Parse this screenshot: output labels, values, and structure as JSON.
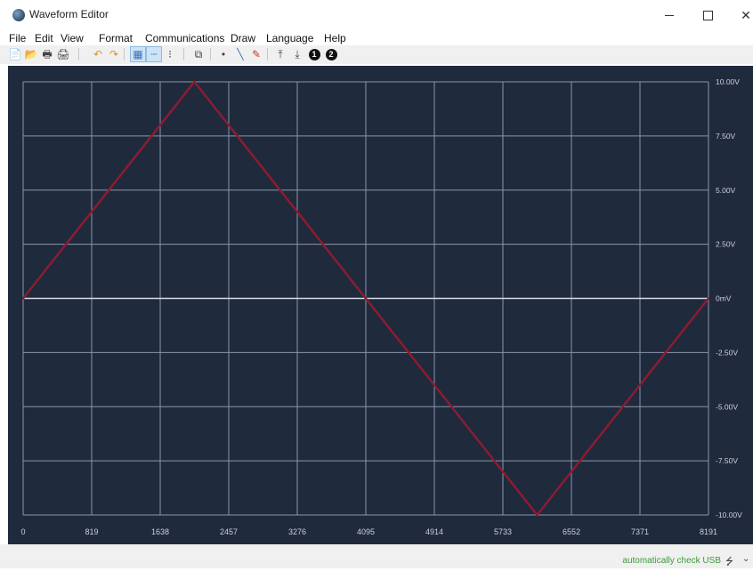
{
  "window": {
    "title": "Waveform Editor",
    "minimize_glyph": "–",
    "maximize_glyph": "□",
    "close_glyph": "✕"
  },
  "menu": [
    {
      "label": "File",
      "name": "menu-file"
    },
    {
      "label": "Edit",
      "name": "menu-edit"
    },
    {
      "label": "View",
      "name": "menu-view"
    },
    {
      "label": "Format",
      "name": "menu-format"
    },
    {
      "label": "Communications",
      "name": "menu-communications"
    },
    {
      "label": "Draw",
      "name": "menu-draw"
    },
    {
      "label": "Language",
      "name": "menu-language"
    },
    {
      "label": "Help",
      "name": "menu-help"
    }
  ],
  "toolbar": {
    "buttons": [
      {
        "name": "new-file-icon",
        "glyph": "📄"
      },
      {
        "name": "open-folder-icon",
        "glyph": "📂"
      },
      {
        "name": "print-icon",
        "glyph": "🖶"
      },
      {
        "name": "print-preview-icon",
        "glyph": "🖨"
      },
      {
        "name": "undo-icon",
        "glyph": "↶"
      },
      {
        "name": "redo-icon",
        "glyph": "↷"
      },
      {
        "name": "grid-snap-icon",
        "glyph": "▦"
      },
      {
        "name": "line-style-icon",
        "glyph": "┄"
      },
      {
        "name": "point-mode-icon",
        "glyph": "⁝"
      },
      {
        "name": "properties-icon",
        "glyph": "⧉"
      },
      {
        "name": "draw-point-icon",
        "glyph": "•"
      },
      {
        "name": "draw-line-icon",
        "glyph": "╲"
      },
      {
        "name": "pencil-icon",
        "glyph": "✎"
      },
      {
        "name": "upload-icon",
        "glyph": "⤒"
      },
      {
        "name": "download-icon",
        "glyph": "⤓"
      },
      {
        "name": "channel-1-button",
        "glyph": "1"
      },
      {
        "name": "channel-2-button",
        "glyph": "2"
      }
    ]
  },
  "chart_data": {
    "type": "line",
    "title": "",
    "xlabel": "",
    "ylabel": "",
    "x_ticks": [
      "0",
      "819",
      "1638",
      "2457",
      "3276",
      "4095",
      "4914",
      "5733",
      "6552",
      "7371",
      "8191"
    ],
    "y_ticks": [
      "10.00V",
      "7.50V",
      "5.00V",
      "2.50V",
      "0mV",
      "-2.50V",
      "-5.00V",
      "-7.50V",
      "-10.00V"
    ],
    "xlim": [
      0,
      8191
    ],
    "ylim": [
      -10,
      10
    ],
    "grid": true,
    "series": [
      {
        "color": "#8b1c30",
        "x": [
          0,
          2047,
          6143,
          8191
        ],
        "y": [
          0,
          10,
          -10,
          0
        ]
      }
    ]
  },
  "colors": {
    "plot_background": "#1f2a3d",
    "grid": "#8a97ab",
    "zero_line": "#d5dbe5",
    "axis_text": "#c9d0da",
    "waveform": "#8b1c30"
  },
  "status": {
    "text": "automatically check USB",
    "usb_icon": "usb-icon",
    "chevron": "⌄"
  }
}
